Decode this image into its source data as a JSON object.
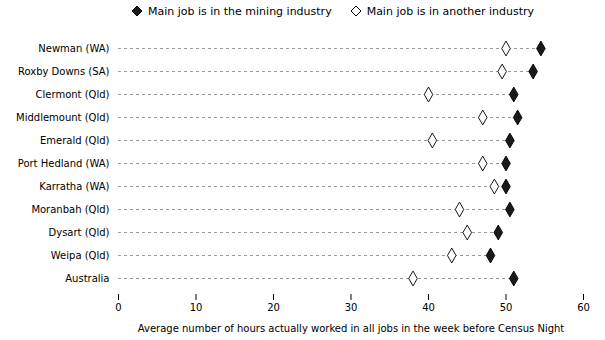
{
  "chart_data": {
    "type": "dot",
    "orientation": "horizontal",
    "categories": [
      "Newman (WA)",
      "Roxby Downs (SA)",
      "Clermont (Qld)",
      "Middlemount (Qld)",
      "Emerald (Qld)",
      "Port Hedland (WA)",
      "Karratha (WA)",
      "Moranbah (Qld)",
      "Dysart (Qld)",
      "Weipa (Qld)",
      "Australia"
    ],
    "series": [
      {
        "name": "Main job is in the mining industry",
        "color": "#1a1a1a",
        "marker": "diamond",
        "line_style": "dashed",
        "values": [
          54.5,
          53.5,
          51.0,
          51.5,
          50.5,
          50.0,
          50.0,
          50.5,
          49.0,
          48.0,
          51.0
        ]
      },
      {
        "name": "Main job is in another industry",
        "color": "#ffffff",
        "marker": "diamond",
        "values": [
          50.0,
          49.5,
          40.0,
          47.0,
          40.5,
          47.0,
          48.5,
          44.0,
          45.0,
          43.0,
          38.0
        ]
      }
    ],
    "xlabel": "Average number of hours actually worked in all jobs in the week before Census Night",
    "xlim": [
      0,
      60
    ],
    "xticks": [
      0,
      10,
      20,
      30,
      40,
      50,
      60
    ],
    "grid": false,
    "legend": "top"
  }
}
